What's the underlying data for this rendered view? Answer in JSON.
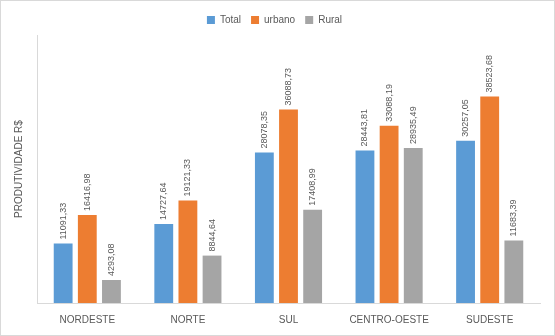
{
  "chart_data": {
    "type": "bar",
    "y_label": "PRODUTIVIDADE R$",
    "categories": [
      "NORDESTE",
      "NORTE",
      "SUL",
      "CENTRO-OESTE",
      "SUDESTE"
    ],
    "series": [
      {
        "name": "Total",
        "color": "#5b9bd5",
        "values": [
          11091.33,
          14727.64,
          28078.35,
          28443.81,
          30257.05
        ],
        "value_labels": [
          "11091,33",
          "14727,64",
          "28078,35",
          "28443,81",
          "30257,05"
        ]
      },
      {
        "name": "urbano",
        "color": "#ed7d31",
        "values": [
          16416.98,
          19121.33,
          36088.73,
          33088.19,
          38523.68
        ],
        "value_labels": [
          "16416,98",
          "19121,33",
          "36088,73",
          "33088,19",
          "38523,68"
        ]
      },
      {
        "name": "Rural",
        "color": "#a5a5a5",
        "values": [
          4293.08,
          8844.64,
          17408.99,
          28935.49,
          11683.39
        ],
        "value_labels": [
          "4293,08",
          "8844,64",
          "17408,99",
          "28935,49",
          "11683,39"
        ]
      }
    ],
    "ylim": [
      0,
      50000
    ],
    "grid": false,
    "legend": "top",
    "data_labels": true,
    "tick_labels": "x"
  }
}
